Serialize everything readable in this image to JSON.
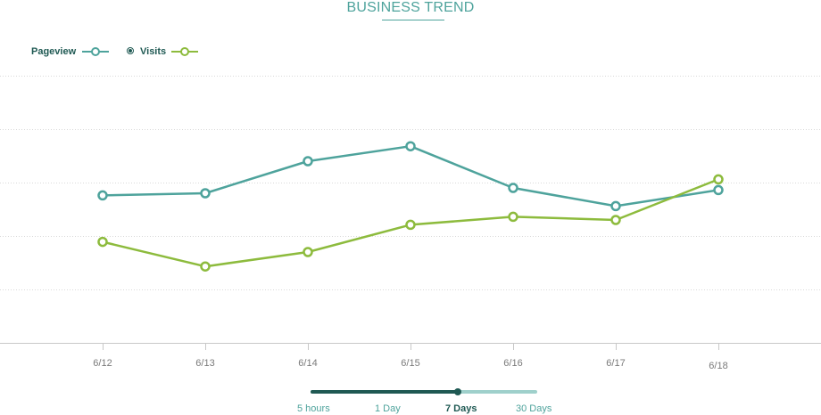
{
  "title": "BUSINESS TREND",
  "legend": {
    "pageview_label": "Pageview",
    "visits_label": "Visits"
  },
  "colors": {
    "pageview": "#4ea39c",
    "visits": "#8dbb3d",
    "dark_teal": "#1f5953",
    "grid": "#d9d9d9",
    "axis": "#c8c8c8",
    "tick_label": "#7a7a7a"
  },
  "range_selector": {
    "options": [
      "5 hours",
      "1 Day",
      "7 Days",
      "30 Days"
    ],
    "selected": "7 Days",
    "level": 0.65
  },
  "chart_data": {
    "type": "line",
    "title": "BUSINESS TREND",
    "x": [
      "6/12",
      "6/13",
      "6/14",
      "6/15",
      "6/16",
      "6/17",
      "6/18"
    ],
    "ylim": [
      0,
      5
    ],
    "grid": true,
    "legend_position": "top-left",
    "series": [
      {
        "name": "Pageview",
        "values": [
          2.76,
          2.8,
          3.4,
          3.68,
          2.9,
          2.56,
          2.86
        ]
      },
      {
        "name": "Visits",
        "values": [
          1.89,
          1.43,
          1.7,
          2.21,
          2.36,
          2.3,
          3.06
        ]
      }
    ]
  }
}
